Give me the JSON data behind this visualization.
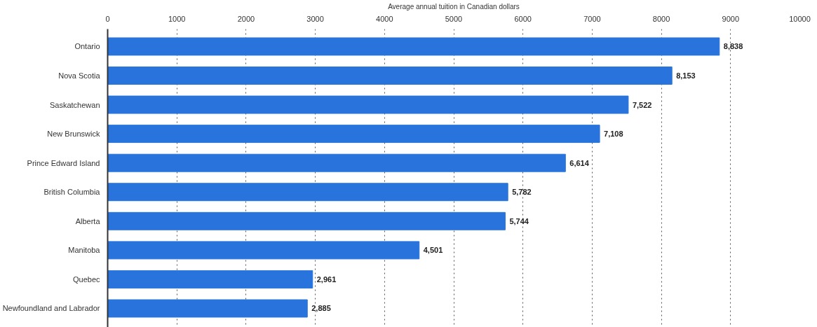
{
  "chart_data": {
    "type": "bar",
    "orientation": "horizontal",
    "xlabel": "Average annual tuition in Canadian dollars",
    "categories": [
      "Ontario",
      "Nova Scotia",
      "Saskatchewan",
      "New Brunswick",
      "Prince Edward Island",
      "British Columbia",
      "Alberta",
      "Manitoba",
      "Quebec",
      "Newfoundland and Labrador"
    ],
    "values": [
      8838,
      8153,
      7522,
      7108,
      6614,
      5782,
      5744,
      4501,
      2961,
      2885
    ],
    "value_labels": [
      "8,838",
      "8,153",
      "7,522",
      "7,108",
      "6,614",
      "5,782",
      "5,744",
      "4,501",
      "2,961",
      "2,885"
    ],
    "color": "#2874dc",
    "xlim": [
      0,
      10000
    ],
    "xticks": [
      0,
      1000,
      2000,
      3000,
      4000,
      5000,
      6000,
      7000,
      8000,
      9000,
      10000
    ],
    "grid": "x"
  }
}
